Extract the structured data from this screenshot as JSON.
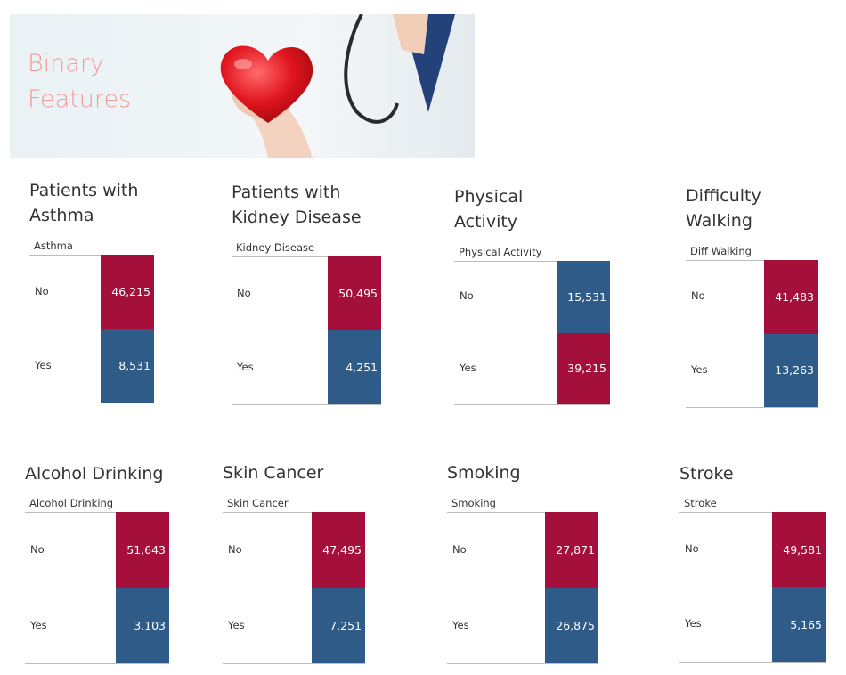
{
  "header": {
    "title": "Binary\nFeatures"
  },
  "colors": {
    "no_risk_red": "#a50f3c",
    "yes_blue": "#2f5b88",
    "title_pink": "#f49a9a"
  },
  "chart_data": [
    {
      "type": "bar",
      "title": "Patients with\nAsthma",
      "field": "Asthma",
      "categories": [
        "No",
        "Yes"
      ],
      "values": [
        46215,
        8531
      ],
      "labels": [
        "46,215",
        "8,531"
      ],
      "colors": [
        "#a50f3c",
        "#2f5b88"
      ]
    },
    {
      "type": "bar",
      "title": "Patients with\nKidney Disease",
      "field": "Kidney Disease",
      "categories": [
        "No",
        "Yes"
      ],
      "values": [
        50495,
        4251
      ],
      "labels": [
        "50,495",
        "4,251"
      ],
      "colors": [
        "#a50f3c",
        "#2f5b88"
      ]
    },
    {
      "type": "bar",
      "title": "Physical\nActivity",
      "field": "Physical Activity",
      "categories": [
        "No",
        "Yes"
      ],
      "values": [
        15531,
        39215
      ],
      "labels": [
        "15,531",
        "39,215"
      ],
      "colors": [
        "#2f5b88",
        "#a50f3c"
      ]
    },
    {
      "type": "bar",
      "title": "Difficulty\nWalking",
      "field": "Diff Walking",
      "categories": [
        "No",
        "Yes"
      ],
      "values": [
        41483,
        13263
      ],
      "labels": [
        "41,483",
        "13,263"
      ],
      "colors": [
        "#a50f3c",
        "#2f5b88"
      ]
    },
    {
      "type": "bar",
      "title": "Alcohol Drinking",
      "field": "Alcohol Drinking",
      "categories": [
        "No",
        "Yes"
      ],
      "values": [
        51643,
        3103
      ],
      "labels": [
        "51,643",
        "3,103"
      ],
      "colors": [
        "#a50f3c",
        "#2f5b88"
      ]
    },
    {
      "type": "bar",
      "title": "Skin Cancer",
      "field": "Skin Cancer",
      "categories": [
        "No",
        "Yes"
      ],
      "values": [
        47495,
        7251
      ],
      "labels": [
        "47,495",
        "7,251"
      ],
      "colors": [
        "#a50f3c",
        "#2f5b88"
      ]
    },
    {
      "type": "bar",
      "title": "Smoking",
      "field": "Smoking",
      "categories": [
        "No",
        "Yes"
      ],
      "values": [
        27871,
        26875
      ],
      "labels": [
        "27,871",
        "26,875"
      ],
      "colors": [
        "#a50f3c",
        "#2f5b88"
      ]
    },
    {
      "type": "bar",
      "title": "Stroke",
      "field": "Stroke",
      "categories": [
        "No",
        "Yes"
      ],
      "values": [
        49581,
        5165
      ],
      "labels": [
        "49,581",
        "5,165"
      ],
      "colors": [
        "#a50f3c",
        "#2f5b88"
      ]
    }
  ]
}
